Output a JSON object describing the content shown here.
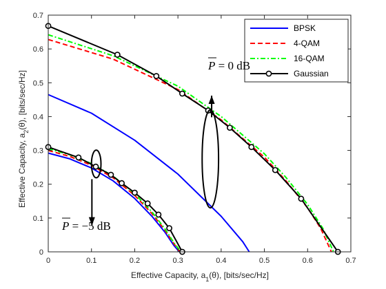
{
  "chart_data": {
    "type": "line",
    "xlabel": "Effective Capacity, a1(θ), [bits/sec/Hz]",
    "ylabel": "Effective Capacity, a2(θ), [bits/sec/Hz]",
    "xlim": [
      0,
      0.7
    ],
    "ylim": [
      0,
      0.7
    ],
    "xticks": [
      "0",
      "0.1",
      "0.2",
      "0.3",
      "0.4",
      "0.5",
      "0.6",
      "0.7"
    ],
    "yticks": [
      "0",
      "0.1",
      "0.2",
      "0.3",
      "0.4",
      "0.5",
      "0.6",
      "0.7"
    ],
    "grid": false,
    "legend_position": "top-right",
    "series": [
      {
        "name": "BPSK",
        "color": "#0000ff",
        "style": "solid",
        "markers": false,
        "group": "0 dB",
        "x": [
          0,
          0.1,
          0.2,
          0.3,
          0.4,
          0.45,
          0.465
        ],
        "y": [
          0.465,
          0.41,
          0.33,
          0.23,
          0.105,
          0.03,
          0
        ]
      },
      {
        "name": "4-QAM",
        "color": "#ff0000",
        "style": "dashed",
        "markers": false,
        "group": "0 dB",
        "x": [
          0,
          0.15,
          0.3,
          0.4,
          0.5,
          0.55,
          0.6,
          0.63,
          0.655
        ],
        "y": [
          0.628,
          0.57,
          0.48,
          0.39,
          0.28,
          0.21,
          0.13,
          0.07,
          0
        ]
      },
      {
        "name": "16-QAM",
        "color": "#00ff00",
        "style": "dashdot",
        "markers": false,
        "group": "0 dB",
        "x": [
          0,
          0.15,
          0.3,
          0.4,
          0.5,
          0.55,
          0.6,
          0.635,
          0.66
        ],
        "y": [
          0.642,
          0.58,
          0.49,
          0.4,
          0.29,
          0.22,
          0.14,
          0.07,
          0
        ]
      },
      {
        "name": "Gaussian",
        "color": "#000000",
        "style": "solid",
        "markers": true,
        "group": "0 dB",
        "x": [
          0,
          0.16,
          0.25,
          0.31,
          0.37,
          0.42,
          0.47,
          0.525,
          0.585,
          0.67
        ],
        "y": [
          0.668,
          0.583,
          0.52,
          0.468,
          0.418,
          0.367,
          0.31,
          0.242,
          0.157,
          0
        ]
      },
      {
        "name": "BPSK",
        "color": "#0000ff",
        "style": "solid",
        "markers": false,
        "group": "-5 dB",
        "x": [
          0,
          0.05,
          0.1,
          0.15,
          0.2,
          0.24,
          0.27,
          0.29,
          0.303
        ],
        "y": [
          0.292,
          0.275,
          0.248,
          0.21,
          0.158,
          0.105,
          0.058,
          0.02,
          0
        ]
      },
      {
        "name": "4-QAM",
        "color": "#ff0000",
        "style": "dashed",
        "markers": false,
        "group": "-5 dB",
        "x": [
          0,
          0.05,
          0.1,
          0.15,
          0.2,
          0.24,
          0.27,
          0.29,
          0.305
        ],
        "y": [
          0.3,
          0.282,
          0.256,
          0.219,
          0.167,
          0.113,
          0.064,
          0.025,
          0
        ]
      },
      {
        "name": "16-QAM",
        "color": "#00ff00",
        "style": "dashdot",
        "markers": false,
        "group": "-5 dB",
        "x": [
          0,
          0.05,
          0.1,
          0.15,
          0.2,
          0.24,
          0.27,
          0.29,
          0.307
        ],
        "y": [
          0.305,
          0.287,
          0.261,
          0.224,
          0.172,
          0.118,
          0.068,
          0.028,
          0
        ]
      },
      {
        "name": "Gaussian",
        "color": "#000000",
        "style": "solid",
        "markers": true,
        "group": "-5 dB",
        "x": [
          0,
          0.07,
          0.11,
          0.145,
          0.17,
          0.2,
          0.23,
          0.255,
          0.28,
          0.31
        ],
        "y": [
          0.31,
          0.279,
          0.252,
          0.228,
          0.203,
          0.175,
          0.143,
          0.11,
          0.07,
          0
        ]
      }
    ],
    "annotations": [
      {
        "text": "P = 0 dB",
        "overline": "P",
        "ellipse": {
          "cx": 0.375,
          "cy": 0.275,
          "rx": 0.019,
          "ry": 0.145
        },
        "arrow": {
          "from": [
            0.378,
            0.398
          ],
          "to": [
            0.378,
            0.462
          ]
        }
      },
      {
        "text": "P = −5 dB",
        "overline": "P",
        "ellipse": {
          "cx": 0.111,
          "cy": 0.26,
          "rx": 0.011,
          "ry": 0.041
        },
        "arrow": {
          "from": [
            0.101,
            0.215
          ],
          "to": [
            0.101,
            0.078
          ]
        }
      }
    ]
  },
  "labels": {
    "xlabel": {
      "pre": "Effective Capacity, a",
      "sub": "1",
      "post": "(θ), [bits/sec/Hz]"
    },
    "ylabel": {
      "pre": "Effective Capacity, a",
      "sub": "2",
      "post": "(θ), [bits/sec/Hz]"
    },
    "legend": [
      "BPSK",
      "4-QAM",
      "16-QAM",
      "Gaussian"
    ],
    "anno_0db": {
      "p": "P",
      "rest": " = 0 dB"
    },
    "anno_5db": {
      "p": "P",
      "rest": " = −5 dB"
    }
  }
}
